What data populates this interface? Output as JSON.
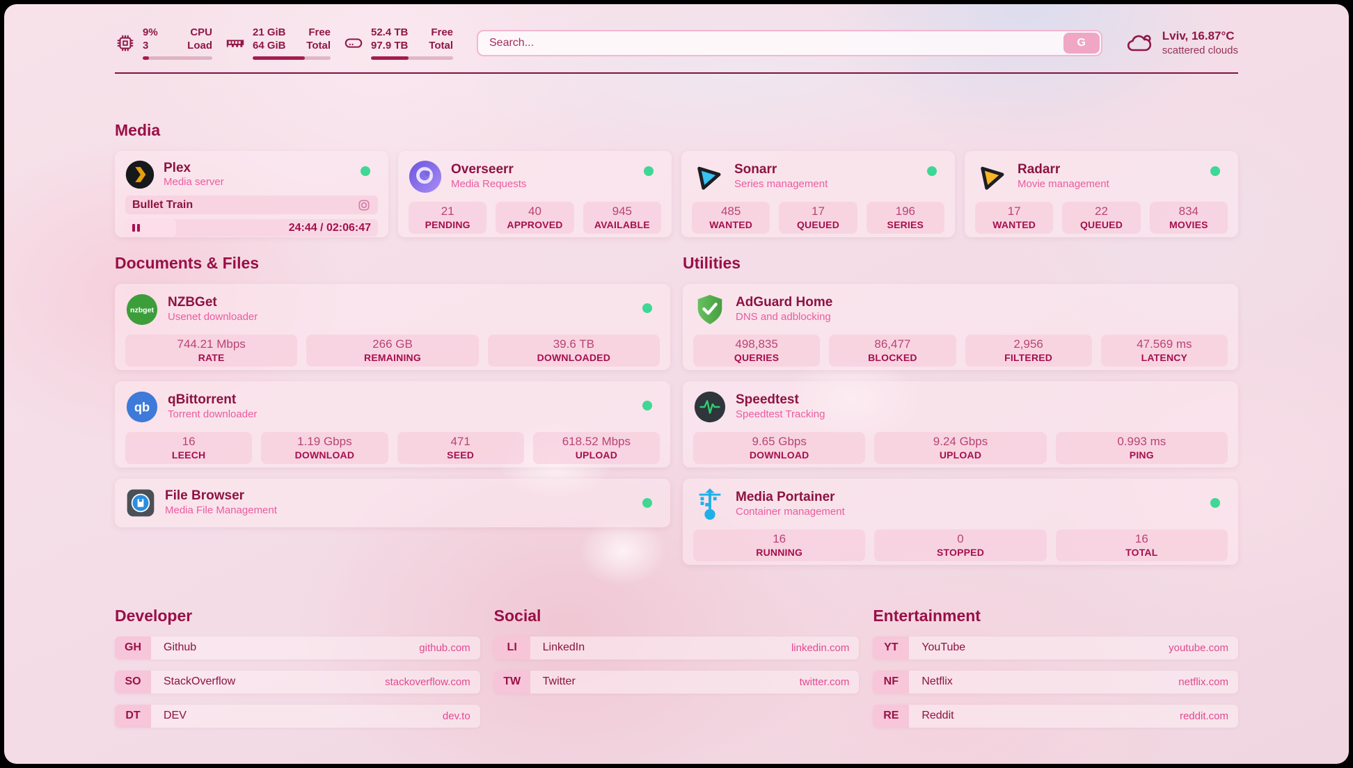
{
  "header": {
    "cpu": {
      "value_top": "9%",
      "value_bottom": "3",
      "label_top": "CPU",
      "label_bottom": "Load",
      "bar_percent": 9
    },
    "memory": {
      "value_top": "21 GiB",
      "value_bottom": "64 GiB",
      "label_top": "Free",
      "label_bottom": "Total",
      "bar_percent": 67
    },
    "disk": {
      "value_top": "52.4 TB",
      "value_bottom": "97.9 TB",
      "label_top": "Free",
      "label_bottom": "Total",
      "bar_percent": 46
    },
    "search": {
      "placeholder": "Search...",
      "button_label": "G"
    },
    "weather": {
      "location_temp": "Lviv, 16.87°C",
      "condition": "scattered clouds"
    }
  },
  "sections": {
    "media": "Media",
    "documents": "Documents & Files",
    "utilities": "Utilities",
    "developer": "Developer",
    "social": "Social",
    "entertainment": "Entertainment"
  },
  "apps": {
    "plex": {
      "name": "Plex",
      "subtitle": "Media server",
      "now_playing": "Bullet Train",
      "time": "24:44 / 02:06:47",
      "progress_percent": 20
    },
    "overseerr": {
      "name": "Overseerr",
      "subtitle": "Media Requests",
      "stats": [
        {
          "value": "21",
          "label": "PENDING"
        },
        {
          "value": "40",
          "label": "APPROVED"
        },
        {
          "value": "945",
          "label": "AVAILABLE"
        }
      ]
    },
    "sonarr": {
      "name": "Sonarr",
      "subtitle": "Series management",
      "stats": [
        {
          "value": "485",
          "label": "WANTED"
        },
        {
          "value": "17",
          "label": "QUEUED"
        },
        {
          "value": "196",
          "label": "SERIES"
        }
      ]
    },
    "radarr": {
      "name": "Radarr",
      "subtitle": "Movie management",
      "stats": [
        {
          "value": "17",
          "label": "WANTED"
        },
        {
          "value": "22",
          "label": "QUEUED"
        },
        {
          "value": "834",
          "label": "MOVIES"
        }
      ]
    },
    "nzbget": {
      "name": "NZBGet",
      "subtitle": "Usenet downloader",
      "stats": [
        {
          "value": "744.21 Mbps",
          "label": "RATE"
        },
        {
          "value": "266 GB",
          "label": "REMAINING"
        },
        {
          "value": "39.6 TB",
          "label": "DOWNLOADED"
        }
      ]
    },
    "qbittorrent": {
      "name": "qBittorrent",
      "subtitle": "Torrent downloader",
      "stats": [
        {
          "value": "16",
          "label": "LEECH"
        },
        {
          "value": "1.19 Gbps",
          "label": "DOWNLOAD"
        },
        {
          "value": "471",
          "label": "SEED"
        },
        {
          "value": "618.52 Mbps",
          "label": "UPLOAD"
        }
      ]
    },
    "filebrowser": {
      "name": "File Browser",
      "subtitle": "Media File Management"
    },
    "adguard": {
      "name": "AdGuard Home",
      "subtitle": "DNS and adblocking",
      "stats": [
        {
          "value": "498,835",
          "label": "QUERIES"
        },
        {
          "value": "86,477",
          "label": "BLOCKED"
        },
        {
          "value": "2,956",
          "label": "FILTERED"
        },
        {
          "value": "47.569 ms",
          "label": "LATENCY"
        }
      ]
    },
    "speedtest": {
      "name": "Speedtest",
      "subtitle": "Speedtest Tracking",
      "stats": [
        {
          "value": "9.65 Gbps",
          "label": "DOWNLOAD"
        },
        {
          "value": "9.24 Gbps",
          "label": "UPLOAD"
        },
        {
          "value": "0.993 ms",
          "label": "PING"
        }
      ]
    },
    "portainer": {
      "name": "Media Portainer",
      "subtitle": "Container management",
      "stats": [
        {
          "value": "16",
          "label": "RUNNING"
        },
        {
          "value": "0",
          "label": "STOPPED"
        },
        {
          "value": "16",
          "label": "TOTAL"
        }
      ]
    }
  },
  "bookmarks": {
    "developer": [
      {
        "abbr": "GH",
        "name": "Github",
        "url": "github.com"
      },
      {
        "abbr": "SO",
        "name": "StackOverflow",
        "url": "stackoverflow.com"
      },
      {
        "abbr": "DT",
        "name": "DEV",
        "url": "dev.to"
      }
    ],
    "social": [
      {
        "abbr": "LI",
        "name": "LinkedIn",
        "url": "linkedin.com"
      },
      {
        "abbr": "TW",
        "name": "Twitter",
        "url": "twitter.com"
      }
    ],
    "entertainment": [
      {
        "abbr": "YT",
        "name": "YouTube",
        "url": "youtube.com"
      },
      {
        "abbr": "NF",
        "name": "Netflix",
        "url": "netflix.com"
      },
      {
        "abbr": "RE",
        "name": "Reddit",
        "url": "reddit.com"
      }
    ]
  },
  "colors": {
    "accent_dark": "#8f1746",
    "accent_pink": "#ea5c9f",
    "tile_label": "#a50f4d",
    "status_green": "#3fd795",
    "bar_fill": "#a41c50"
  },
  "icons": {
    "pause_glyph": "❚❚"
  }
}
